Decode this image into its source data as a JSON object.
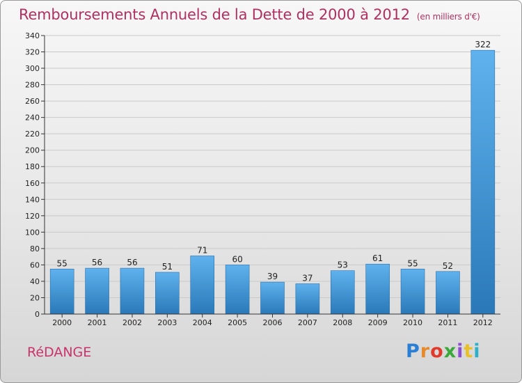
{
  "header": {
    "title": "Remboursements Annuels de la Dette de 2000 à 2012",
    "subtitle": "(en milliers d'€)"
  },
  "footer": {
    "commune": "RéDANGE",
    "logo_letters": [
      "P",
      "r",
      "o",
      "x",
      "i",
      "t",
      "i"
    ]
  },
  "colors": {
    "title": "#b03060",
    "bar_top": "#5fb2ee",
    "bar_bottom": "#2a78b8",
    "logo": [
      "#2a7fd4",
      "#e8892a",
      "#e23a2a",
      "#3aa83a",
      "#8a4fd0",
      "#e8c12a",
      "#2ab0c8"
    ]
  },
  "chart_data": {
    "type": "bar",
    "categories": [
      "2000",
      "2001",
      "2002",
      "2003",
      "2004",
      "2005",
      "2006",
      "2007",
      "2008",
      "2009",
      "2010",
      "2011",
      "2012"
    ],
    "values": [
      55,
      56,
      56,
      51,
      71,
      60,
      39,
      37,
      53,
      61,
      55,
      52,
      322
    ],
    "title": "Remboursements Annuels de la Dette de 2000 à 2012",
    "subtitle": "(en milliers d'€)",
    "ylim": [
      0,
      340
    ],
    "yticks": [
      0,
      20,
      40,
      60,
      80,
      100,
      120,
      140,
      160,
      180,
      200,
      220,
      240,
      260,
      280,
      300,
      320,
      340
    ],
    "grid": true,
    "legend": "none"
  }
}
